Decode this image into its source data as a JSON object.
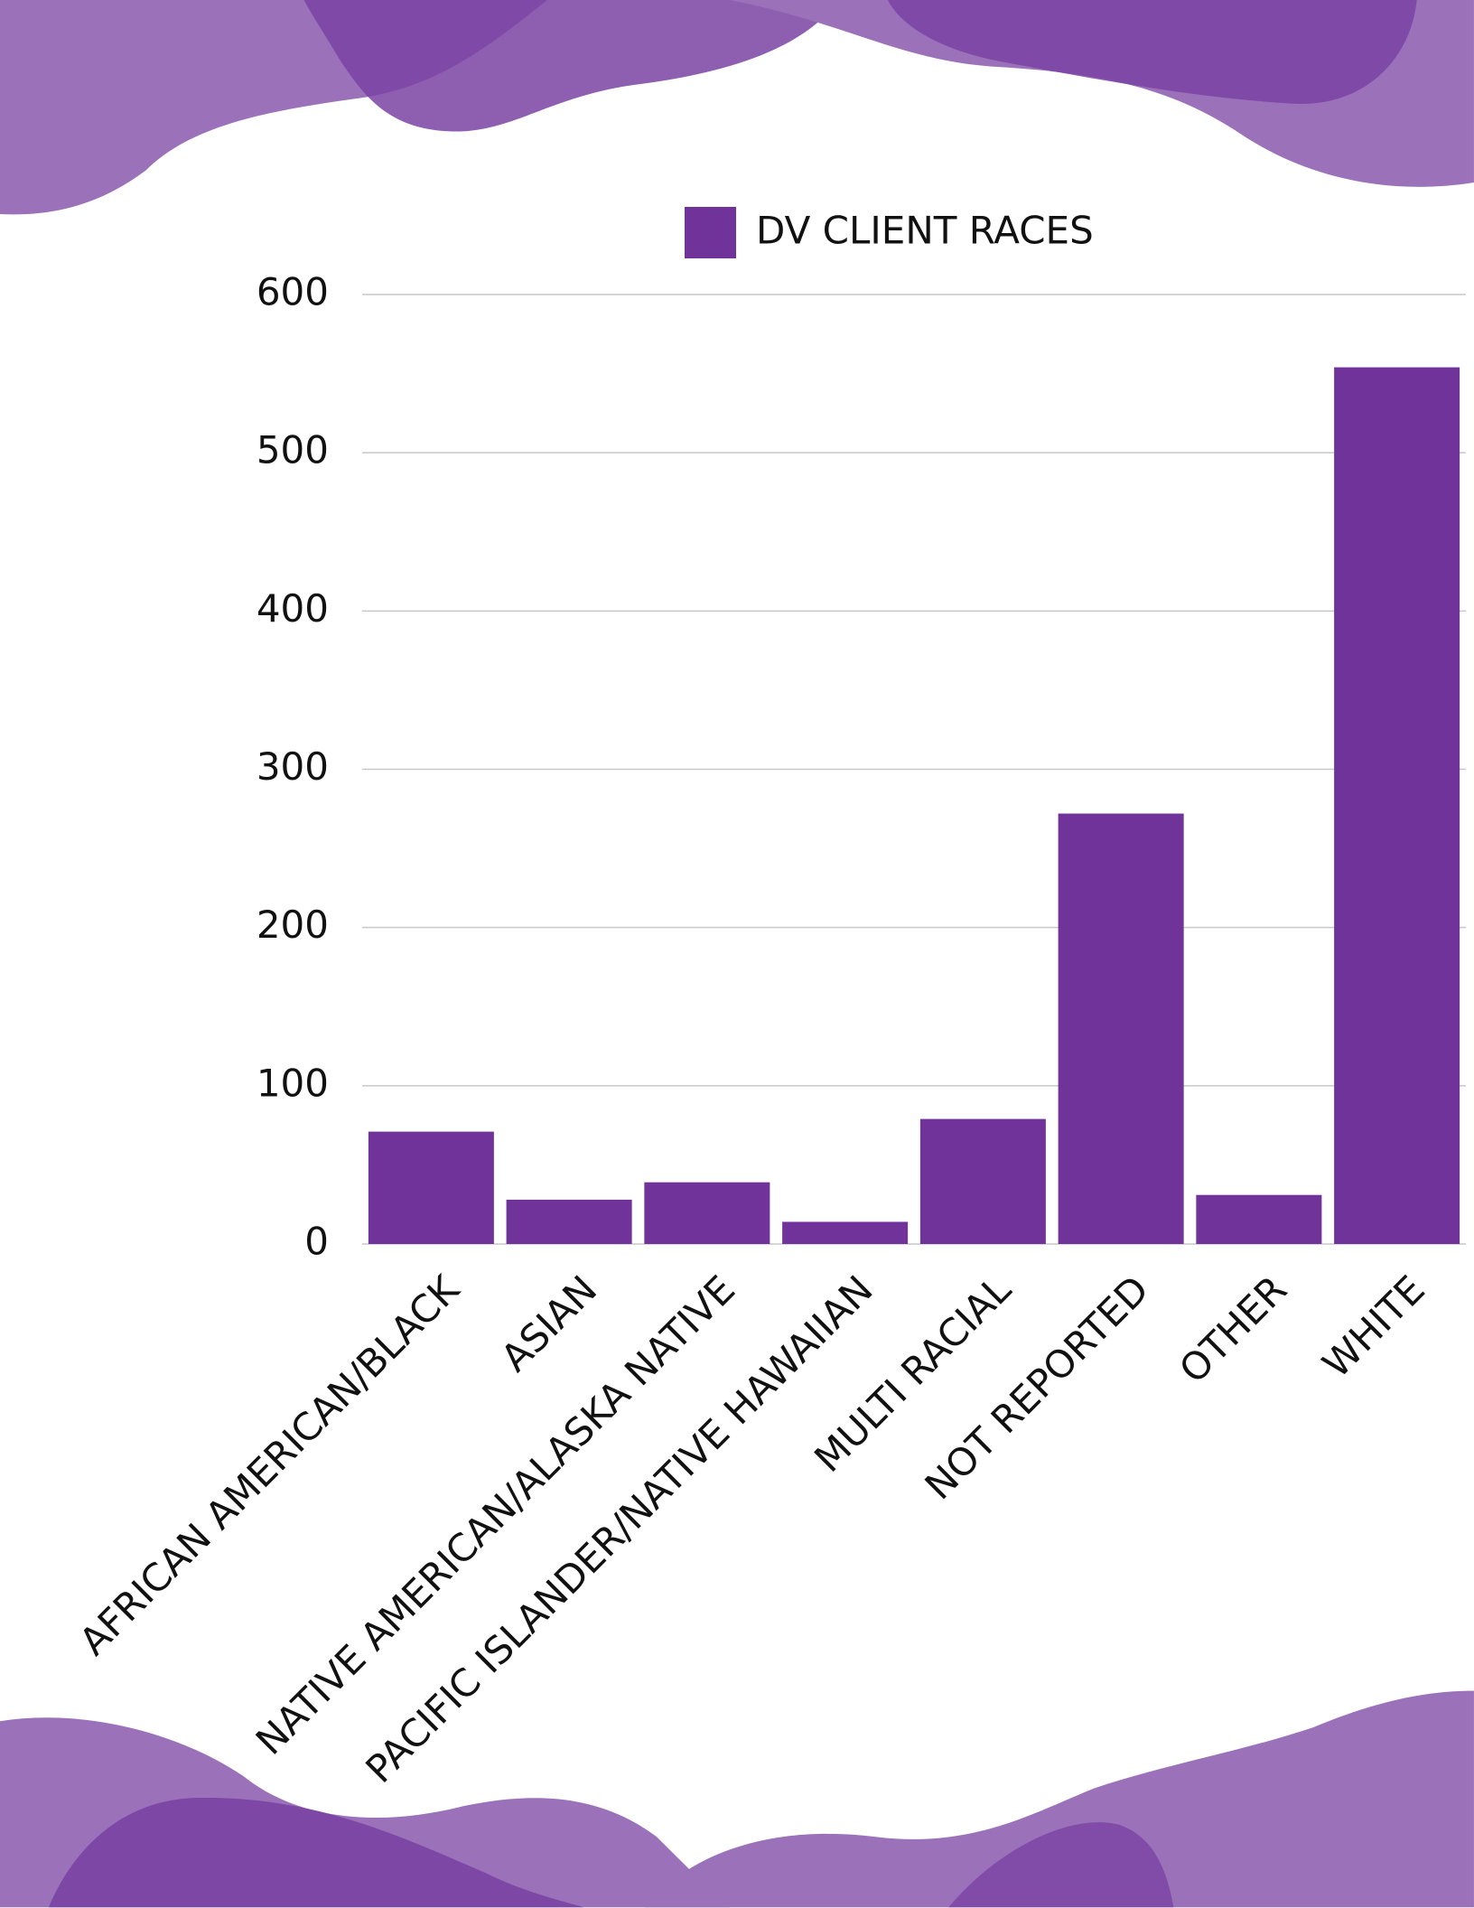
{
  "chart_data": {
    "type": "bar",
    "categories": [
      "AFRICAN AMERICAN/BLACK",
      "ASIAN",
      "NATIVE AMERICAN/ALASKA NATIVE",
      "PACIFIC ISLANDER/NATIVE HAWAIIAN",
      "MULTI RACIAL",
      "NOT REPORTED",
      "OTHER",
      "WHITE"
    ],
    "series": [
      {
        "name": "DV CLIENT RACES",
        "color": "#6f3399",
        "values": [
          71,
          28,
          39,
          14,
          79,
          272,
          31,
          554
        ]
      }
    ],
    "ylim": [
      0,
      600
    ],
    "yticks": [
      0,
      100,
      200,
      300,
      400,
      500,
      600
    ],
    "grid": true,
    "legend": "top"
  }
}
